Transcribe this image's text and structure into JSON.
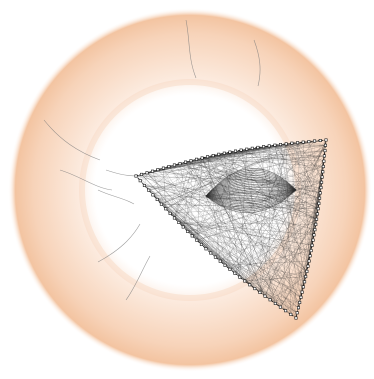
{
  "figure": {
    "kind": "network-graph-on-ring",
    "colors": {
      "background": "#ffffff",
      "ring_inner": "#ffffff",
      "ring_mid": "#fbe9dc",
      "ring_outer": "#f6cfb3",
      "ring_edge": "#f3c4a1",
      "edge_stroke": "#2b2b2b",
      "node_stroke": "#1a1a1a",
      "crack_stroke": "#7a7a7a"
    },
    "icons": {
      "node": "small-square-node-icon"
    }
  }
}
